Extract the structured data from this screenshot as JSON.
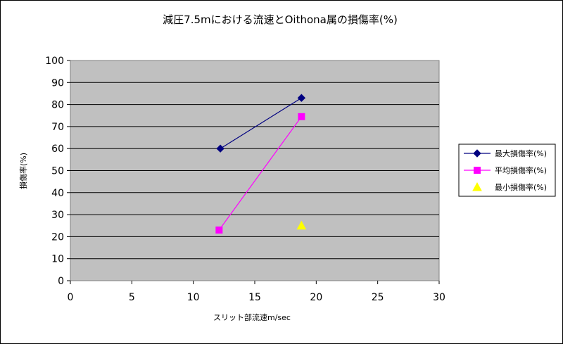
{
  "chart_data": {
    "type": "scatter",
    "title": "減圧7.5mにおける流速とOithona属の損傷率(%)",
    "xlabel": "スリット部流速m/sec",
    "ylabel": "損傷率(%)",
    "xlim": [
      0,
      30
    ],
    "ylim": [
      0,
      100
    ],
    "xticks": [
      "0",
      "5",
      "10",
      "15",
      "20",
      "25",
      "30"
    ],
    "yticks": [
      "0",
      "10",
      "20",
      "30",
      "40",
      "50",
      "60",
      "70",
      "80",
      "90",
      "100"
    ],
    "grid": "horizontal",
    "legend_position": "right",
    "series": [
      {
        "name": "最大損傷率(%)",
        "marker": "diamond",
        "color": "#000080",
        "lines": true,
        "points": [
          [
            12.2,
            60
          ],
          [
            18.8,
            83
          ]
        ]
      },
      {
        "name": "平均損傷率(%)",
        "marker": "square",
        "color": "#ff00ff",
        "lines": true,
        "points": [
          [
            12.1,
            23
          ],
          [
            18.8,
            74.5
          ]
        ]
      },
      {
        "name": "最小損傷率(%)",
        "marker": "triangle",
        "color": "#ffff00",
        "lines": false,
        "points": [
          [
            18.8,
            25
          ]
        ]
      }
    ],
    "plot_background": "#c0c0c0"
  }
}
